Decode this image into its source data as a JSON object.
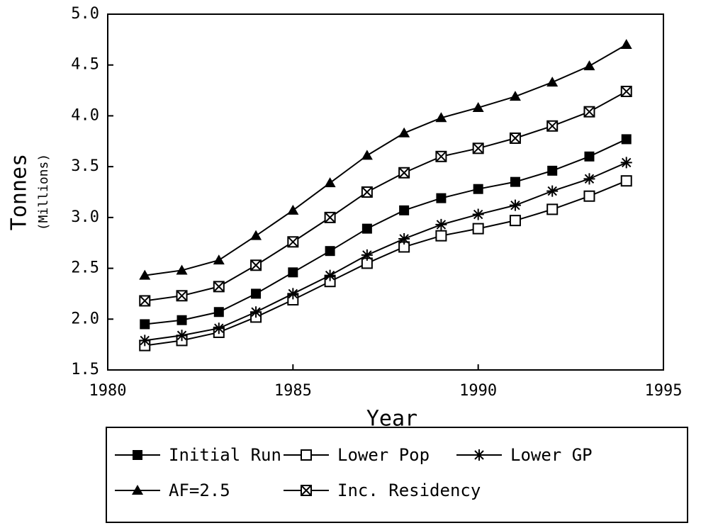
{
  "chart_data": {
    "type": "line",
    "y_label": "Tonnes",
    "y_sublabel": "(Millions)",
    "x_label": "Year",
    "x": [
      1981,
      1982,
      1983,
      1984,
      1985,
      1986,
      1987,
      1988,
      1989,
      1990,
      1991,
      1992,
      1993,
      1994
    ],
    "series": [
      {
        "name": "Initial Run",
        "color": "#000000",
        "marker": "filled-square",
        "values": [
          1.95,
          1.99,
          2.07,
          2.25,
          2.46,
          2.67,
          2.89,
          3.07,
          3.19,
          3.28,
          3.35,
          3.46,
          3.6,
          3.77
        ]
      },
      {
        "name": "Lower Pop",
        "color": "#000000",
        "marker": "open-square",
        "values": [
          1.74,
          1.79,
          1.87,
          2.02,
          2.19,
          2.37,
          2.55,
          2.71,
          2.82,
          2.89,
          2.97,
          3.08,
          3.21,
          3.36
        ]
      },
      {
        "name": "Lower GP",
        "color": "#000000",
        "marker": "asterisk",
        "values": [
          1.79,
          1.84,
          1.91,
          2.07,
          2.25,
          2.43,
          2.63,
          2.79,
          2.93,
          3.03,
          3.12,
          3.26,
          3.38,
          3.54
        ]
      },
      {
        "name": "AF=2.5",
        "color": "#000000",
        "marker": "filled-triangle",
        "values": [
          2.43,
          2.48,
          2.58,
          2.82,
          3.07,
          3.34,
          3.61,
          3.83,
          3.98,
          4.08,
          4.19,
          4.33,
          4.49,
          4.7
        ]
      },
      {
        "name": "Inc. Residency",
        "color": "#000000",
        "marker": "boxed-x",
        "values": [
          2.18,
          2.23,
          2.32,
          2.53,
          2.76,
          3.0,
          3.25,
          3.44,
          3.6,
          3.68,
          3.78,
          3.9,
          4.04,
          4.24
        ]
      }
    ],
    "xlim": [
      1980,
      1995
    ],
    "xticks": [
      1980,
      1985,
      1990,
      1995
    ],
    "ylim": [
      1.5,
      5.0
    ],
    "yticks": [
      1.5,
      {
        "value": 2,
        "label": "2.0"
      },
      2.5,
      {
        "value": 3,
        "label": "3.0"
      },
      3.5,
      {
        "value": 4,
        "label": "4.0"
      },
      4.5,
      {
        "value": 5,
        "label": "5.0"
      }
    ],
    "legend": "bottom"
  }
}
